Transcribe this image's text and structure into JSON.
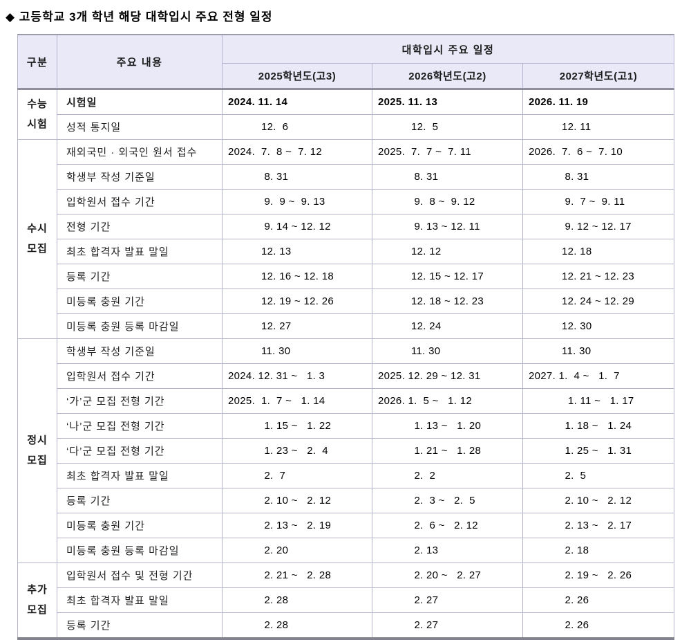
{
  "title": "◆ 고등학교 3개 학년 해당 대학입시 주요 전형 일정",
  "header": {
    "col_category": "구분",
    "col_content": "주요 내용",
    "col_schedule": "대학입시 주요 일정",
    "years": [
      "2025학년도(고3)",
      "2026학년도(고2)",
      "2027학년도(고1)"
    ]
  },
  "colors": {
    "header_bg": "#e9e9f8",
    "border": "#b3b3ce",
    "thick_rule": "#8f8f9e"
  },
  "sections": [
    {
      "group_lines": [
        "수능",
        "시험"
      ],
      "rows": [
        {
          "label": "시험일",
          "bold": true,
          "cells": [
            {
              "t": "2024. 11. 14",
              "y": true,
              "b": true
            },
            {
              "t": "2025. 11. 13",
              "y": true,
              "b": true
            },
            {
              "t": "2026. 11. 19",
              "y": true,
              "b": true
            }
          ]
        },
        {
          "label": "성적 통지일",
          "cells": [
            {
              "t": "12.  6"
            },
            {
              "t": "12.  5"
            },
            {
              "t": "12. 11"
            }
          ]
        }
      ]
    },
    {
      "group_lines": [
        "수시",
        "모집"
      ],
      "rows": [
        {
          "label": "재외국민 · 외국인 원서 접수",
          "cells": [
            {
              "t": "2024.  7.  8 ~  7. 12",
              "y": true
            },
            {
              "t": "2025.  7.  7 ~  7. 11",
              "y": true
            },
            {
              "t": "2026.  7.  6 ~  7. 10",
              "y": true
            }
          ]
        },
        {
          "label": "학생부 작성 기준일",
          "cells": [
            {
              "t": " 8. 31"
            },
            {
              "t": " 8. 31"
            },
            {
              "t": " 8. 31"
            }
          ]
        },
        {
          "label": "입학원서 접수 기간",
          "cells": [
            {
              "t": " 9.  9 ~  9. 13"
            },
            {
              "t": " 9.  8 ~  9. 12"
            },
            {
              "t": " 9.  7 ~  9. 11"
            }
          ]
        },
        {
          "label": "전형 기간",
          "cells": [
            {
              "t": " 9. 14 ~ 12. 12"
            },
            {
              "t": " 9. 13 ~ 12. 11"
            },
            {
              "t": " 9. 12 ~ 12. 17"
            }
          ]
        },
        {
          "label": "최초 합격자 발표 말일",
          "cells": [
            {
              "t": "12. 13"
            },
            {
              "t": "12. 12"
            },
            {
              "t": "12. 18"
            }
          ]
        },
        {
          "label": "등록 기간",
          "cells": [
            {
              "t": "12. 16 ~ 12. 18"
            },
            {
              "t": "12. 15 ~ 12. 17"
            },
            {
              "t": "12. 21 ~ 12. 23"
            }
          ]
        },
        {
          "label": "미등록 충원 기간",
          "cells": [
            {
              "t": "12. 19 ~ 12. 26"
            },
            {
              "t": "12. 18 ~ 12. 23"
            },
            {
              "t": "12. 24 ~ 12. 29"
            }
          ]
        },
        {
          "label": "미등록 충원 등록 마감일",
          "cells": [
            {
              "t": "12. 27"
            },
            {
              "t": "12. 24"
            },
            {
              "t": "12. 30"
            }
          ]
        }
      ]
    },
    {
      "group_lines": [
        "정시",
        "모집"
      ],
      "rows": [
        {
          "label": "학생부 작성 기준일",
          "cells": [
            {
              "t": "11. 30"
            },
            {
              "t": "11. 30"
            },
            {
              "t": "11. 30"
            }
          ]
        },
        {
          "label": "입학원서 접수 기간",
          "cells": [
            {
              "t": "2024. 12. 31 ~   1. 3",
              "y": true
            },
            {
              "t": "2025. 12. 29 ~ 12. 31",
              "y": true
            },
            {
              "t": "2027. 1.  4 ~   1.  7",
              "y": true
            }
          ]
        },
        {
          "label": "‘가’군 모집 전형 기간",
          "cells": [
            {
              "t": "2025.  1.  7 ~   1. 14",
              "y": true
            },
            {
              "t": "2026. 1.  5 ~   1. 12",
              "y": true
            },
            {
              "t": "  1. 11 ~   1. 17"
            }
          ]
        },
        {
          "label": "‘나’군 모집 전형 기간",
          "cells": [
            {
              "t": " 1. 15 ~   1. 22"
            },
            {
              "t": " 1. 13 ~   1. 20"
            },
            {
              "t": " 1. 18 ~   1. 24"
            }
          ]
        },
        {
          "label": "‘다’군 모집 전형 기간",
          "cells": [
            {
              "t": " 1. 23 ~   2.  4"
            },
            {
              "t": " 1. 21 ~   1. 28"
            },
            {
              "t": " 1. 25 ~   1. 31"
            }
          ]
        },
        {
          "label": "최초 합격자 발표 말일",
          "cells": [
            {
              "t": " 2.  7"
            },
            {
              "t": " 2.  2"
            },
            {
              "t": " 2.  5"
            }
          ]
        },
        {
          "label": "등록 기간",
          "cells": [
            {
              "t": " 2. 10 ~   2. 12"
            },
            {
              "t": " 2.  3 ~   2.  5"
            },
            {
              "t": " 2. 10 ~   2. 12"
            }
          ]
        },
        {
          "label": "미등록 충원 기간",
          "cells": [
            {
              "t": " 2. 13 ~   2. 19"
            },
            {
              "t": " 2.  6 ~   2. 12"
            },
            {
              "t": " 2. 13 ~   2. 17"
            }
          ]
        },
        {
          "label": "미등록 충원 등록 마감일",
          "cells": [
            {
              "t": " 2. 20"
            },
            {
              "t": " 2. 13"
            },
            {
              "t": " 2. 18"
            }
          ]
        }
      ]
    },
    {
      "group_lines": [
        "추가",
        "모집"
      ],
      "rows": [
        {
          "label": "입학원서 접수 및 전형 기간",
          "cells": [
            {
              "t": " 2. 21 ~   2. 28"
            },
            {
              "t": " 2. 20 ~   2. 27"
            },
            {
              "t": " 2. 19 ~   2. 26"
            }
          ]
        },
        {
          "label": "최초 합격자 발표 말일",
          "cells": [
            {
              "t": " 2. 28"
            },
            {
              "t": " 2. 27"
            },
            {
              "t": " 2. 26"
            }
          ]
        },
        {
          "label": "등록 기간",
          "cells": [
            {
              "t": " 2. 28"
            },
            {
              "t": " 2. 27"
            },
            {
              "t": " 2. 26"
            }
          ]
        }
      ]
    }
  ]
}
